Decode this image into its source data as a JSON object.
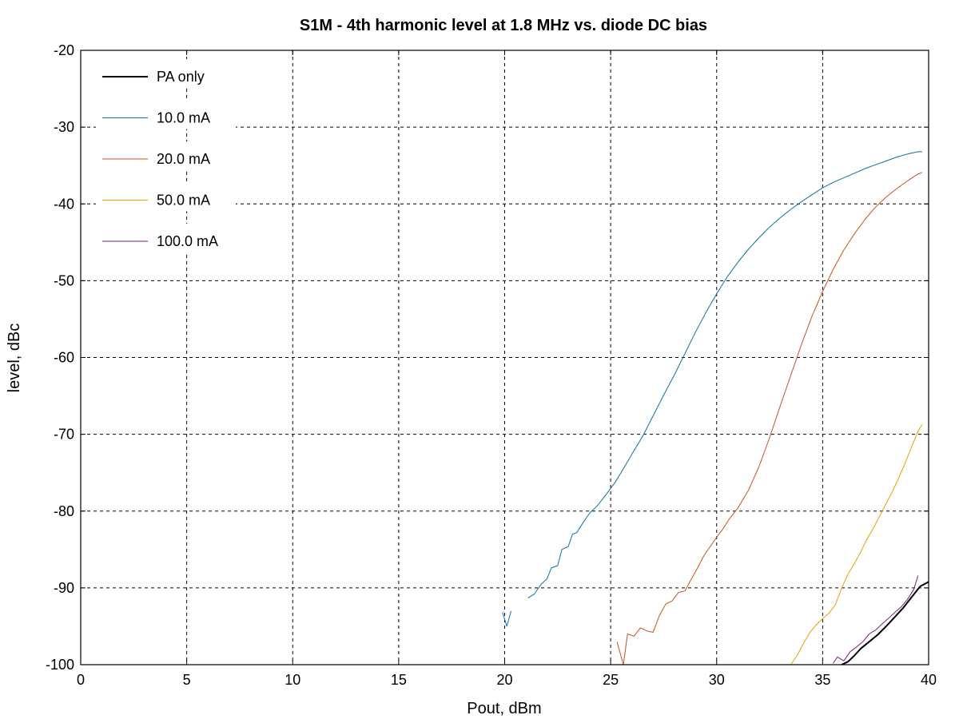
{
  "chart_data": {
    "type": "line",
    "title": "S1M - 4th harmonic level at 1.8 MHz vs. diode DC bias",
    "xlabel": "Pout, dBm",
    "ylabel": "level, dBc",
    "xlim": [
      0,
      40
    ],
    "ylim": [
      -100,
      -20
    ],
    "xticks": [
      0,
      5,
      10,
      15,
      20,
      25,
      30,
      35,
      40
    ],
    "yticks": [
      -20,
      -30,
      -40,
      -50,
      -60,
      -70,
      -80,
      -90,
      -100
    ],
    "grid": true,
    "legend_position": "top-left",
    "series": [
      {
        "name": "PA only",
        "color": "#000000",
        "width": 2,
        "points": [
          [
            35.9,
            -100
          ],
          [
            36.2,
            -99.6
          ],
          [
            36.5,
            -98.8
          ],
          [
            36.8,
            -97.9
          ],
          [
            37.2,
            -97.0
          ],
          [
            37.6,
            -96.1
          ],
          [
            38.0,
            -95.0
          ],
          [
            38.4,
            -93.8
          ],
          [
            38.8,
            -92.6
          ],
          [
            39.2,
            -91.2
          ],
          [
            39.6,
            -89.8
          ],
          [
            40,
            -89.2
          ]
        ]
      },
      {
        "name": "10.0 mA",
        "color": "#0a72a8",
        "width": 1,
        "points": [
          [
            19.9,
            -93.2
          ],
          [
            20.1,
            -95.0
          ],
          [
            20.3,
            -93.0
          ],
          [
            null,
            null
          ],
          [
            21.1,
            -91.3
          ],
          [
            21.4,
            -90.8
          ],
          [
            21.7,
            -89.6
          ],
          [
            22.0,
            -88.8
          ],
          [
            22.2,
            -87.4
          ],
          [
            22.5,
            -87.1
          ],
          [
            22.7,
            -85.0
          ],
          [
            23.0,
            -84.6
          ],
          [
            23.2,
            -83.0
          ],
          [
            23.4,
            -82.8
          ],
          [
            23.7,
            -81.5
          ],
          [
            24.0,
            -80.3
          ],
          [
            24.4,
            -79.2
          ],
          [
            24.8,
            -77.8
          ],
          [
            25.2,
            -76.3
          ],
          [
            25.6,
            -74.5
          ],
          [
            26.0,
            -72.6
          ],
          [
            26.5,
            -70.3
          ],
          [
            27.0,
            -67.6
          ],
          [
            27.5,
            -64.9
          ],
          [
            28.0,
            -62.3
          ],
          [
            28.5,
            -59.5
          ],
          [
            29.0,
            -56.7
          ],
          [
            29.5,
            -54.1
          ],
          [
            30.0,
            -51.7
          ],
          [
            30.5,
            -49.5
          ],
          [
            31.0,
            -47.6
          ],
          [
            31.5,
            -45.9
          ],
          [
            32.0,
            -44.4
          ],
          [
            32.5,
            -43.0
          ],
          [
            33.0,
            -41.8
          ],
          [
            33.5,
            -40.7
          ],
          [
            34.0,
            -39.7
          ],
          [
            34.5,
            -38.8
          ],
          [
            35.0,
            -37.9
          ],
          [
            35.5,
            -37.2
          ],
          [
            36.0,
            -36.6
          ],
          [
            36.5,
            -36.0
          ],
          [
            37.0,
            -35.4
          ],
          [
            37.5,
            -34.9
          ],
          [
            38.0,
            -34.4
          ],
          [
            38.5,
            -33.9
          ],
          [
            39.0,
            -33.5
          ],
          [
            39.5,
            -33.2
          ],
          [
            39.7,
            -33.2
          ]
        ]
      },
      {
        "name": "20.0 mA",
        "color": "#c8531e",
        "width": 1,
        "points": [
          [
            25.3,
            -97.0
          ],
          [
            25.6,
            -100.0
          ],
          [
            25.8,
            -96.0
          ],
          [
            26.1,
            -96.3
          ],
          [
            26.4,
            -95.2
          ],
          [
            26.7,
            -95.6
          ],
          [
            27.0,
            -95.8
          ],
          [
            27.3,
            -93.6
          ],
          [
            27.6,
            -92.1
          ],
          [
            27.9,
            -91.7
          ],
          [
            28.2,
            -90.6
          ],
          [
            28.5,
            -90.4
          ],
          [
            28.8,
            -88.9
          ],
          [
            29.1,
            -87.4
          ],
          [
            29.4,
            -85.8
          ],
          [
            29.7,
            -84.6
          ],
          [
            30.0,
            -83.4
          ],
          [
            30.3,
            -82.3
          ],
          [
            30.6,
            -81.0
          ],
          [
            31.0,
            -79.6
          ],
          [
            31.5,
            -77.3
          ],
          [
            32.0,
            -74.2
          ],
          [
            32.5,
            -70.4
          ],
          [
            33.0,
            -66.3
          ],
          [
            33.5,
            -62.3
          ],
          [
            34.0,
            -58.3
          ],
          [
            34.5,
            -54.6
          ],
          [
            35.0,
            -51.4
          ],
          [
            35.5,
            -48.5
          ],
          [
            36.0,
            -46.0
          ],
          [
            36.5,
            -43.9
          ],
          [
            37.0,
            -42.0
          ],
          [
            37.5,
            -40.4
          ],
          [
            38.0,
            -39.1
          ],
          [
            38.5,
            -38.0
          ],
          [
            39.0,
            -37.0
          ],
          [
            39.5,
            -36.1
          ],
          [
            39.7,
            -35.9
          ]
        ]
      },
      {
        "name": "50.0 mA",
        "color": "#e8a000",
        "width": 1,
        "points": [
          [
            33.5,
            -100.0
          ],
          [
            33.8,
            -98.8
          ],
          [
            34.1,
            -97.2
          ],
          [
            34.4,
            -95.8
          ],
          [
            34.7,
            -94.8
          ],
          [
            35.0,
            -94.0
          ],
          [
            35.3,
            -93.3
          ],
          [
            35.6,
            -92.2
          ],
          [
            35.9,
            -90.0
          ],
          [
            36.2,
            -88.2
          ],
          [
            36.5,
            -86.8
          ],
          [
            36.8,
            -85.3
          ],
          [
            37.1,
            -83.6
          ],
          [
            37.4,
            -82.2
          ],
          [
            37.7,
            -80.6
          ],
          [
            38.0,
            -79.0
          ],
          [
            38.3,
            -77.4
          ],
          [
            38.6,
            -75.6
          ],
          [
            38.9,
            -73.7
          ],
          [
            39.2,
            -71.6
          ],
          [
            39.5,
            -69.6
          ],
          [
            39.7,
            -68.7
          ]
        ]
      },
      {
        "name": "100.0 mA",
        "color": "#7a1a7a",
        "width": 1,
        "points": [
          [
            35.5,
            -99.8
          ],
          [
            35.7,
            -99.0
          ],
          [
            36.0,
            -99.5
          ],
          [
            36.3,
            -98.3
          ],
          [
            36.6,
            -97.7
          ],
          [
            36.9,
            -97.0
          ],
          [
            37.2,
            -96.0
          ],
          [
            37.5,
            -95.5
          ],
          [
            37.8,
            -94.7
          ],
          [
            38.1,
            -94.0
          ],
          [
            38.4,
            -93.2
          ],
          [
            38.7,
            -92.5
          ],
          [
            39.0,
            -91.5
          ],
          [
            39.3,
            -90.2
          ],
          [
            39.5,
            -88.4
          ]
        ]
      }
    ]
  }
}
